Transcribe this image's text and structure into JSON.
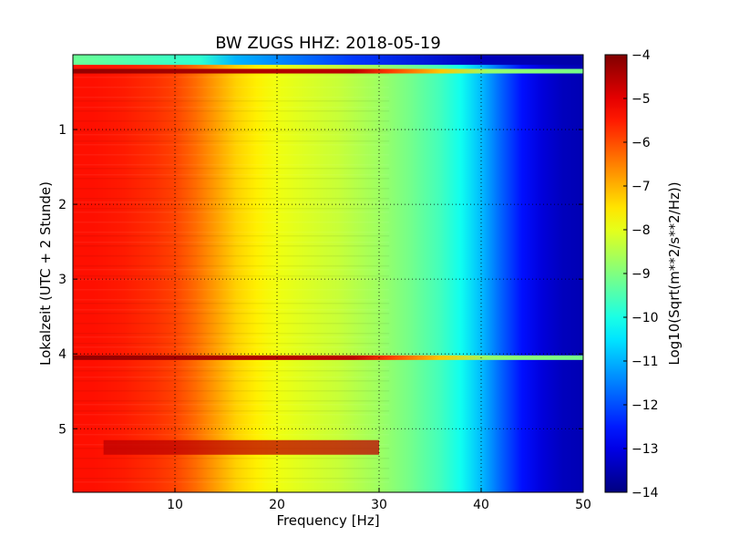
{
  "chart_data": {
    "type": "heatmap",
    "title": "BW ZUGS HHZ: 2018-05-19",
    "xlabel": "Frequency [Hz]",
    "ylabel": "Lokalzeit (UTC + 2 Stunde)",
    "xlim": [
      0,
      50
    ],
    "ylim": [
      5.85,
      0.0
    ],
    "x_ticks": [
      10,
      20,
      30,
      40,
      50
    ],
    "y_ticks": [
      1,
      2,
      3,
      4,
      5
    ],
    "grid": true,
    "colormap": "jet",
    "colorbar": {
      "label": "Log10(Sqrt(m**2/s**2/Hz))",
      "range": [
        -14,
        -4
      ],
      "ticks": [
        -4,
        -5,
        -6,
        -7,
        -8,
        -9,
        -10,
        -11,
        -12,
        -13,
        -14
      ]
    },
    "spectrum_profile": {
      "frequency_hz": [
        0,
        2,
        5,
        8,
        10,
        12,
        14,
        16,
        18,
        20,
        23,
        26,
        30,
        33,
        36,
        38,
        40,
        42,
        44,
        46,
        48,
        50
      ],
      "log10_amplitude": [
        -5.4,
        -5.4,
        -5.5,
        -5.7,
        -5.9,
        -6.3,
        -6.8,
        -7.3,
        -7.6,
        -7.9,
        -8.1,
        -8.3,
        -8.7,
        -9.1,
        -9.6,
        -10.1,
        -10.9,
        -11.8,
        -12.6,
        -13.1,
        -13.4,
        -13.5
      ]
    },
    "notable_rows": [
      {
        "time": 0.05,
        "description": "data gap",
        "log10_amplitude": -9.0
      },
      {
        "time": 0.22,
        "description": "strong broadband band",
        "log10_amplitude": -4.2
      },
      {
        "time": 4.05,
        "description": "strong broadband band",
        "log10_amplitude": -4.2
      },
      {
        "time": 5.25,
        "description": "elevated energy 5–30 Hz",
        "log10_amplitude": -4.6
      }
    ]
  }
}
